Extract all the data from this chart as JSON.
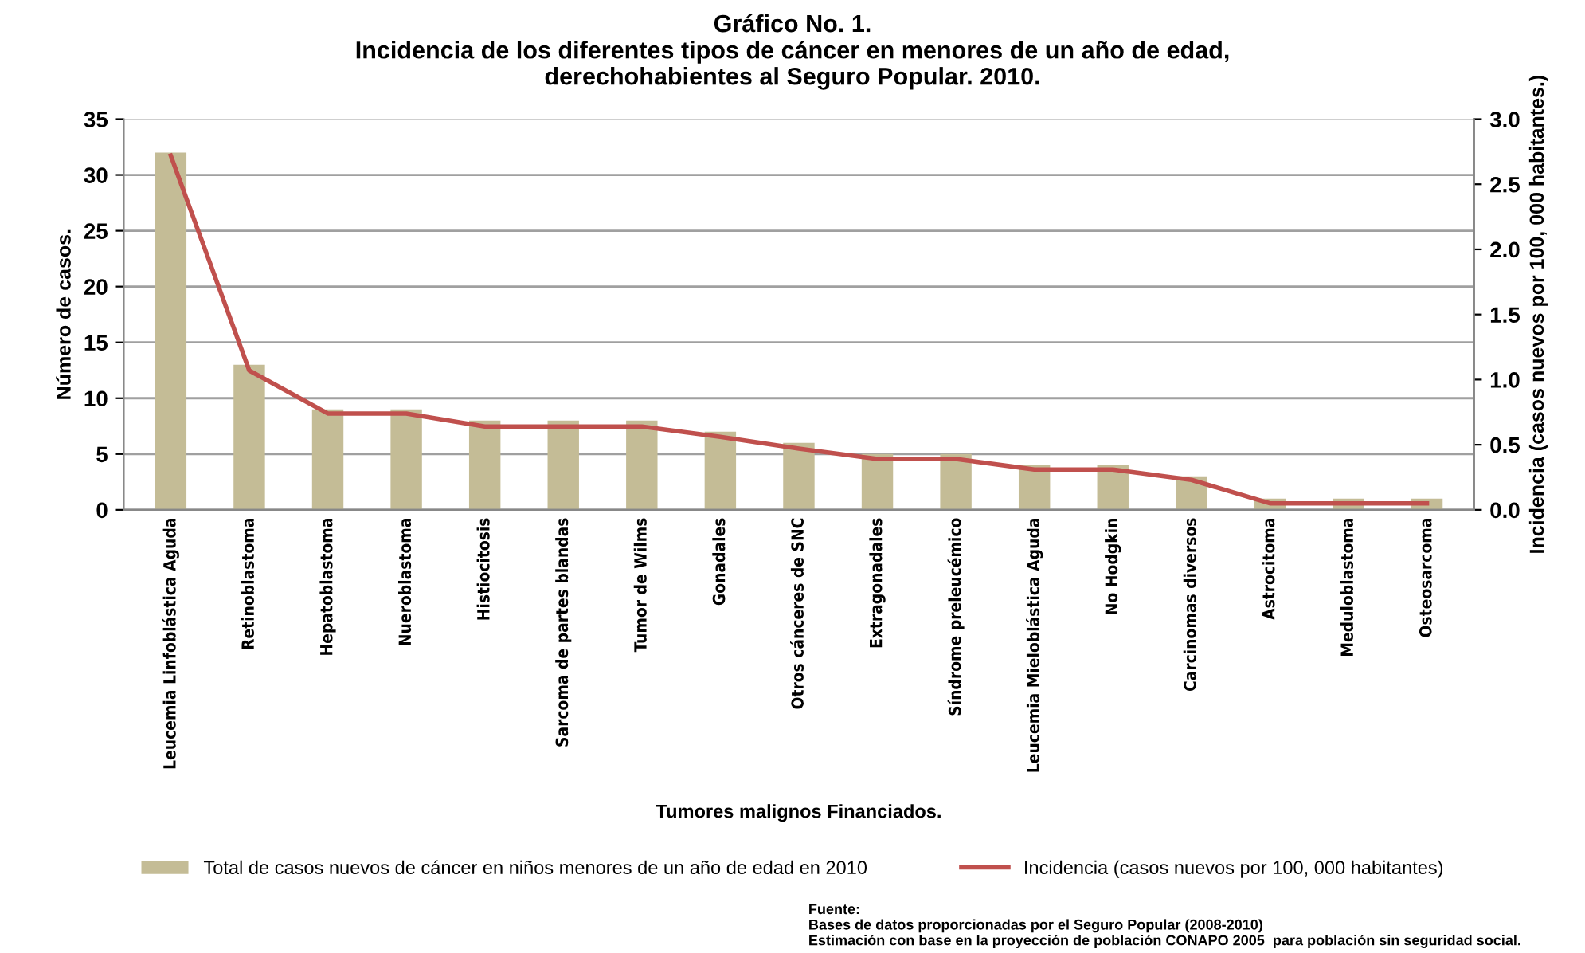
{
  "chart_data": {
    "type": "bar",
    "title": "Gráfico No. 1.\nIncidencia de los diferentes tipos de cáncer en menores de un año de edad,\nderechohabientes al Seguro Popular. 2010.",
    "xlabel": "Tumores malignos Financiados.",
    "ylabel": "Número de casos.",
    "y2label": "Incidencia (casos nuevos por 100, 000 habitantes.)",
    "categories": [
      "Leucemia Linfoblástica Aguda",
      "Retinoblastoma",
      "Hepatoblastoma",
      "Nueroblastoma",
      "Histiocitosis",
      "Sarcoma de partes blandas",
      "Tumor de Wilms",
      "Gonadales",
      "Otros cánceres de SNC",
      "Extragonadales",
      "Síndrome preleucémico",
      "Leucemia Mieloblástica Aguda",
      "No Hodgkin",
      "Carcinomas diversos",
      "Astrocitoma",
      "Meduloblastoma",
      "Osteosarcoma"
    ],
    "series": [
      {
        "name": "Total de casos nuevos de cáncer en niños menores de un año de edad en 2010",
        "color": "#c4bc96",
        "values": [
          32,
          13,
          9,
          9,
          8,
          8,
          8,
          7,
          6,
          5,
          5,
          4,
          4,
          3,
          1,
          1,
          1
        ]
      },
      {
        "name": "Incidencia (casos nuevos por 100, 000 habitantes)",
        "type": "line",
        "axis": "y2",
        "color": "#c0504d",
        "values": [
          2.72,
          1.07,
          0.74,
          0.74,
          0.64,
          0.64,
          0.64,
          0.56,
          0.47,
          0.39,
          0.39,
          0.31,
          0.31,
          0.23,
          0.05,
          0.05,
          0.05
        ]
      }
    ],
    "ylim": [
      0,
      35
    ],
    "yticks": [
      0,
      5,
      10,
      15,
      20,
      25,
      30,
      35
    ],
    "y2lim": [
      0,
      3
    ],
    "y2ticks": [
      {
        "value": 0,
        "label": "0.0"
      },
      {
        "value": 0.5,
        "label": "0.5"
      },
      {
        "value": 1,
        "label": "1.0"
      },
      {
        "value": 1.5,
        "label": "1.5"
      },
      {
        "value": 2,
        "label": "2.0"
      },
      {
        "value": 2.5,
        "label": "2.5"
      },
      {
        "value": 3,
        "label": "3.0"
      }
    ],
    "grid": "y",
    "legend": "bottom",
    "marker": "none",
    "line_style": "solid",
    "annotations": [
      "Fuente:\nBases de datos proporcionadas por el Seguro Popular (2008-2010)\nEstimación con base en la proyección de población CONAPO 2005  para población sin seguridad social."
    ]
  }
}
